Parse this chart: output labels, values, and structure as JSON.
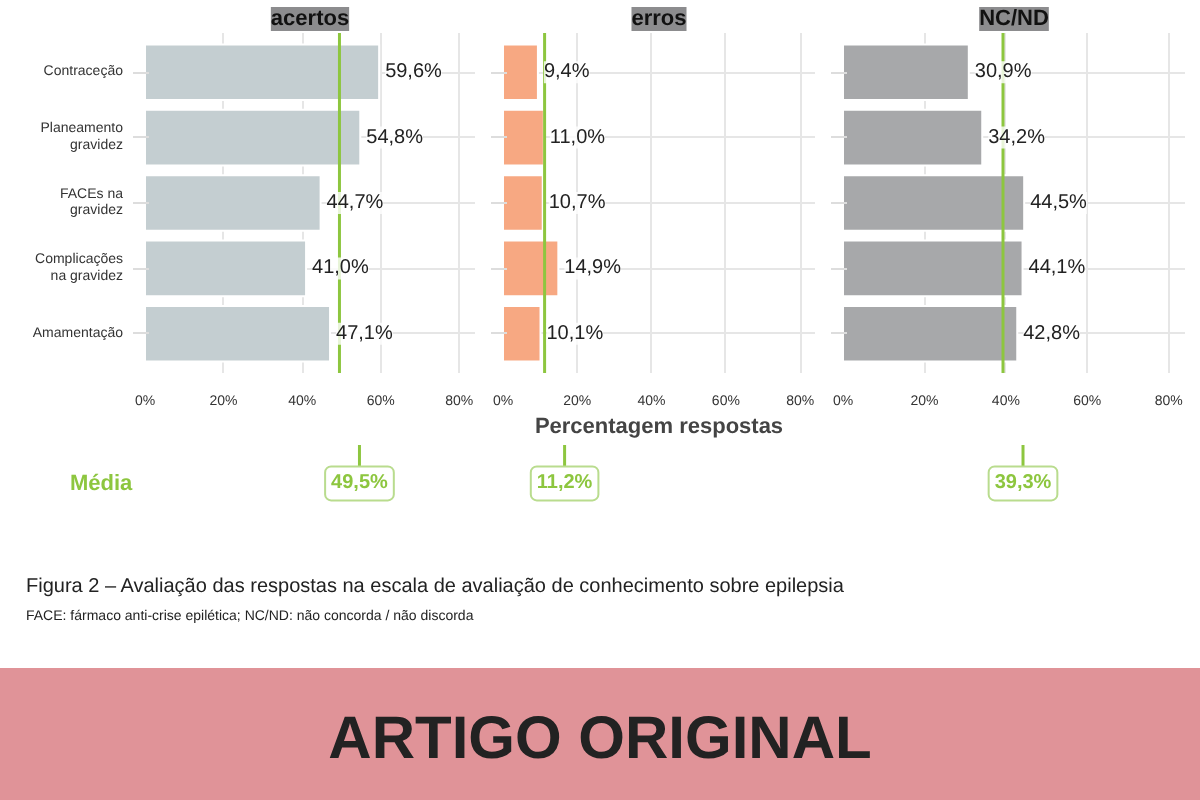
{
  "chart_data": [
    {
      "type": "bar",
      "orientation": "horizontal",
      "title": "acertos",
      "categories": [
        "Contraceção",
        "Planeamento gravidez",
        "FACEs na gravidez",
        "Complicações na gravidez",
        "Amamentação"
      ],
      "values": [
        59.6,
        54.8,
        44.7,
        41.0,
        47.1
      ],
      "color": "#c4ced1",
      "value_labels": [
        "59,6%",
        "54,8%",
        "44,7%",
        "41,0%",
        "47,1%"
      ],
      "xlim": [
        0,
        84
      ],
      "xticks": [
        {
          "value": 0,
          "label": "0%"
        },
        {
          "value": 20,
          "label": "20%"
        },
        {
          "value": 40,
          "label": "40%"
        },
        {
          "value": 60,
          "label": "60%"
        },
        {
          "value": 80,
          "label": "80%"
        }
      ],
      "grid": true,
      "ref_lines": [
        {
          "axis": "x",
          "value": 49.5,
          "label": "49,5%",
          "color": "#8dc63f"
        }
      ],
      "annotations": [
        "Média",
        "Figura 2 – Avaliação das respostas na escala de avaliação de conhecimento sobre epilepsia",
        "FACE: fármaco anti-crise epilética; NC/ND: não concorda / não discorda",
        "ARTIGO ORIGINAL"
      ]
    },
    {
      "type": "bar",
      "orientation": "horizontal",
      "title": "erros",
      "xlabel": "Percentagem respostas",
      "categories": [
        null,
        null,
        null,
        null,
        null
      ],
      "values": [
        9.4,
        11.0,
        10.7,
        14.9,
        10.1
      ],
      "color": "#f7a882",
      "value_labels": [
        "9,4%",
        "11,0%",
        "10,7%",
        "14,9%",
        "10,1%"
      ],
      "xlim": [
        0,
        84
      ],
      "xticks": [
        {
          "value": 0,
          "label": "0%"
        },
        {
          "value": 20,
          "label": "20%"
        },
        {
          "value": 40,
          "label": "40%"
        },
        {
          "value": 60,
          "label": "60%"
        },
        {
          "value": 80,
          "label": "80%"
        }
      ],
      "grid": true,
      "tick_labels": "x",
      "ref_lines": [
        {
          "axis": "x",
          "value": 11.2,
          "label": "11,2%",
          "color": "#8dc63f"
        }
      ]
    },
    {
      "type": "bar",
      "orientation": "horizontal",
      "title": "NC/ND",
      "categories": [
        null,
        null,
        null,
        null,
        null
      ],
      "values": [
        30.9,
        34.2,
        44.5,
        44.1,
        42.8
      ],
      "color": "#a7a8aa",
      "value_labels": [
        "30,9%",
        "34,2%",
        "44,5%",
        "44,1%",
        "42,8%"
      ],
      "xlim": [
        0,
        84
      ],
      "xticks": [
        {
          "value": 0,
          "label": "0%"
        },
        {
          "value": 20,
          "label": "20%"
        },
        {
          "value": 40,
          "label": "40%"
        },
        {
          "value": 60,
          "label": "60%"
        },
        {
          "value": 80,
          "label": "80%"
        }
      ],
      "grid": true,
      "tick_labels": "x",
      "ref_lines": [
        {
          "axis": "x",
          "value": 39.3,
          "label": "39,3%",
          "color": "#8dc63f"
        }
      ]
    }
  ]
}
